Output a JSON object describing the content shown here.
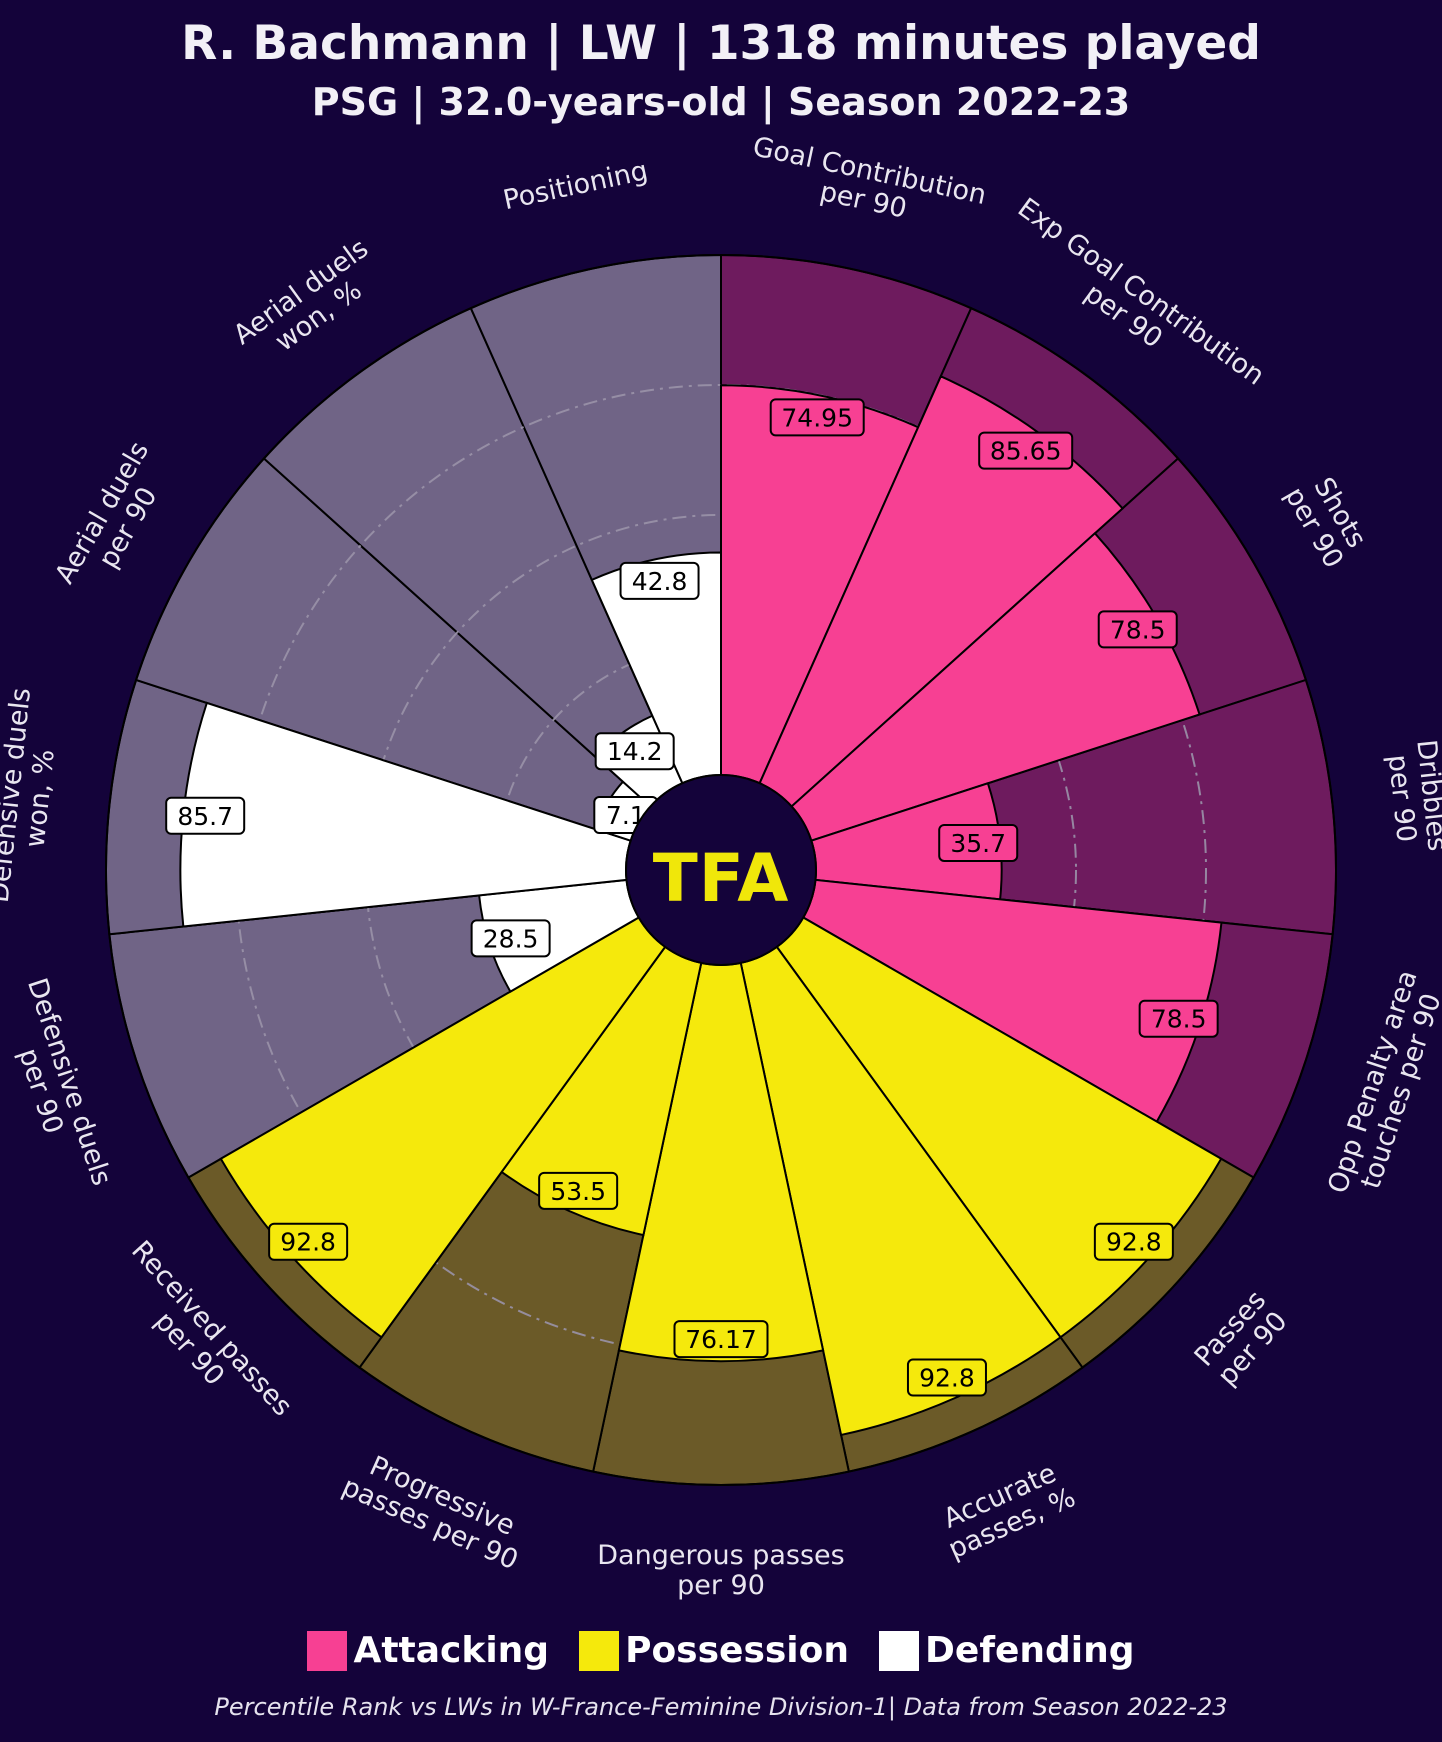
{
  "title": "R. Bachmann | LW | 1318 minutes played",
  "subtitle": "PSG | 32.0-years-old | Season 2022-23",
  "logo_text": "TFA",
  "footer": "Percentile Rank vs LWs in W-France-Feminine Division-1| Data from Season 2022-23",
  "colors": {
    "background": "#14033a",
    "attacking": "#f74093",
    "attacking_bg": "#6e1b5e",
    "possession": "#f5e90c",
    "possession_bg": "#6b5a28",
    "defending": "#ffffff",
    "defending_bg": "#706486"
  },
  "legend": [
    {
      "label": "Attacking",
      "color": "#f74093"
    },
    {
      "label": "Possession",
      "color": "#f5e90c"
    },
    {
      "label": "Defending",
      "color": "#ffffff"
    }
  ],
  "chart_data": {
    "type": "pizza",
    "title": "R. Bachmann | LW | 1318 minutes played",
    "subtitle": "PSG | 32.0-years-old | Season 2022-23",
    "range": [
      0,
      100
    ],
    "gridlines": [
      25,
      50,
      75
    ],
    "start": "top, clockwise",
    "categories": [
      {
        "name": "Attacking",
        "color": "#f74093"
      },
      {
        "name": "Possession",
        "color": "#f5e90c"
      },
      {
        "name": "Defending",
        "color": "#ffffff"
      }
    ],
    "params": [
      {
        "label": [
          "Goal Contribution",
          "per 90"
        ],
        "value": 74.95,
        "label_text": "74.95",
        "category": "Attacking"
      },
      {
        "label": [
          "Exp Goal Contribution",
          "per 90"
        ],
        "value": 85.65,
        "label_text": "85.65",
        "category": "Attacking"
      },
      {
        "label": [
          "Shots",
          "per 90"
        ],
        "value": 78.5,
        "label_text": "78.5",
        "category": "Attacking"
      },
      {
        "label": [
          "Dribbles",
          "per 90"
        ],
        "value": 35.7,
        "label_text": "35.7",
        "category": "Attacking"
      },
      {
        "label": [
          "Opp Penalty area",
          "touches per 90"
        ],
        "value": 78.5,
        "label_text": "78.5",
        "category": "Attacking"
      },
      {
        "label": [
          "Passes",
          "per 90"
        ],
        "value": 92.8,
        "label_text": "92.8",
        "category": "Possession"
      },
      {
        "label": [
          "Accurate",
          "passes, %"
        ],
        "value": 92.8,
        "label_text": "92.8",
        "category": "Possession"
      },
      {
        "label": [
          "Dangerous passes",
          "per 90"
        ],
        "value": 76.17,
        "label_text": "76.17",
        "category": "Possession"
      },
      {
        "label": [
          "Progressive",
          "passes per 90"
        ],
        "value": 53.5,
        "label_text": "53.5",
        "category": "Possession"
      },
      {
        "label": [
          "Received passes",
          "per 90"
        ],
        "value": 92.8,
        "label_text": "92.8",
        "category": "Possession"
      },
      {
        "label": [
          "Defensive duels",
          "per 90"
        ],
        "value": 28.5,
        "label_text": "28.5",
        "category": "Defending"
      },
      {
        "label": [
          "Defensive duels",
          "won, %"
        ],
        "value": 85.7,
        "label_text": "85.7",
        "category": "Defending"
      },
      {
        "label": [
          "Aerial duels",
          "per 90"
        ],
        "value": 7.1,
        "label_text": "7.1",
        "category": "Defending"
      },
      {
        "label": [
          "Aerial duels",
          "won, %"
        ],
        "value": 14.2,
        "label_text": "14.2",
        "category": "Defending"
      },
      {
        "label": [
          "Positioning"
        ],
        "value": 42.8,
        "label_text": "42.8",
        "category": "Defending"
      }
    ]
  }
}
